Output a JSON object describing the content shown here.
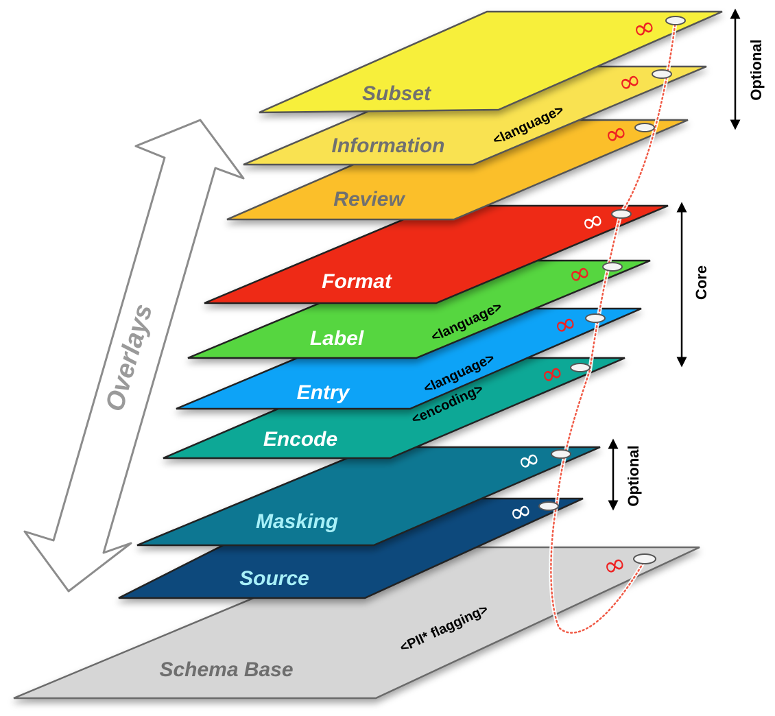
{
  "diagram": {
    "overlays_label": "Overlays",
    "layers": [
      {
        "id": "subset",
        "name": "Subset",
        "tag": "",
        "color": "#f7ef3b",
        "title_color": "#707070",
        "link_color": "#ee2222"
      },
      {
        "id": "information",
        "name": "Information",
        "tag": "<language>",
        "color": "#f9e251",
        "title_color": "#707070",
        "link_color": "#ee2222"
      },
      {
        "id": "review",
        "name": "Review",
        "tag": "",
        "color": "#fbbf2c",
        "title_color": "#707070",
        "link_color": "#ee2222"
      },
      {
        "id": "format",
        "name": "Format",
        "tag": "",
        "color": "#ee2a12",
        "title_color": "#ffffff",
        "link_color": "#ffffff"
      },
      {
        "id": "label",
        "name": "Label",
        "tag": "<language>",
        "color": "#57d63f",
        "title_color": "#ffffff",
        "link_color": "#ee2222"
      },
      {
        "id": "entry",
        "name": "Entry",
        "tag": "<language>",
        "color": "#0ca3f7",
        "title_color": "#ffffff",
        "link_color": "#ee2222"
      },
      {
        "id": "encode",
        "name": "Encode",
        "tag": "<encoding>",
        "color": "#0aa896",
        "title_color": "#ffffff",
        "link_color": "#ee2222"
      },
      {
        "id": "masking",
        "name": "Masking",
        "tag": "",
        "color": "#0b7792",
        "title_color": "#a8f0f8",
        "link_color": "#ffffff"
      },
      {
        "id": "source",
        "name": "Source",
        "tag": "",
        "color": "#0a4a7c",
        "title_color": "#a8f0f8",
        "link_color": "#ffffff"
      },
      {
        "id": "schema-base",
        "name": "Schema Base",
        "tag": "<PII* flagging>",
        "color": "#d6d6d6",
        "title_color": "#6e6e6e",
        "link_color": "#ee2222"
      }
    ],
    "brackets": [
      {
        "id": "optional-top",
        "label": "Optional"
      },
      {
        "id": "core",
        "label": "Core"
      },
      {
        "id": "optional-bottom",
        "label": "Optional"
      }
    ],
    "link_glyph": "∞"
  }
}
